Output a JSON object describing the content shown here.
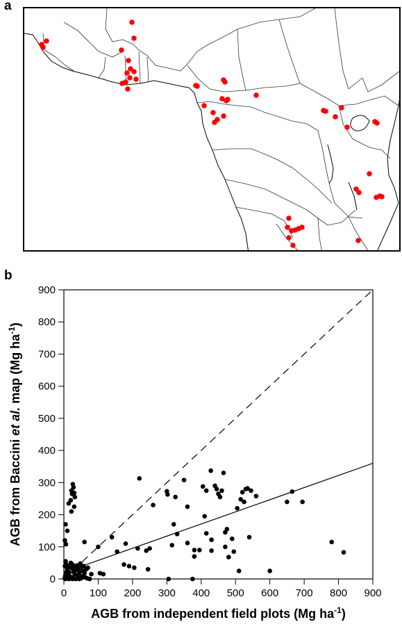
{
  "panels": {
    "a": "a",
    "b": "b"
  },
  "map": {
    "point_color": "#ff0000",
    "sites": [
      [
        188,
        30
      ],
      [
        191,
        53
      ],
      [
        173,
        70
      ],
      [
        183,
        85
      ],
      [
        186,
        97
      ],
      [
        181,
        103
      ],
      [
        191,
        101
      ],
      [
        185,
        110
      ],
      [
        179,
        116
      ],
      [
        194,
        112
      ],
      [
        174,
        118
      ],
      [
        182,
        126
      ],
      [
        65,
        57
      ],
      [
        58,
        62
      ],
      [
        60,
        66
      ],
      [
        280,
        121
      ],
      [
        282,
        122
      ],
      [
        320,
        113
      ],
      [
        322,
        116
      ],
      [
        318,
        140
      ],
      [
        324,
        143
      ],
      [
        326,
        141
      ],
      [
        367,
        135
      ],
      [
        292,
        150
      ],
      [
        305,
        160
      ],
      [
        320,
        165
      ],
      [
        307,
        174
      ],
      [
        311,
        170
      ],
      [
        464,
        157
      ],
      [
        467,
        158
      ],
      [
        490,
        153
      ],
      [
        481,
        166
      ],
      [
        498,
        181
      ],
      [
        538,
        173
      ],
      [
        541,
        175
      ],
      [
        530,
        248
      ],
      [
        511,
        270
      ],
      [
        515,
        275
      ],
      [
        540,
        282
      ],
      [
        545,
        280
      ],
      [
        548,
        281
      ],
      [
        414,
        312
      ],
      [
        412,
        325
      ],
      [
        418,
        330
      ],
      [
        423,
        329
      ],
      [
        428,
        327
      ],
      [
        433,
        325
      ],
      [
        414,
        340
      ],
      [
        420,
        351
      ],
      [
        514,
        344
      ]
    ]
  },
  "chart_data": {
    "type": "scatter",
    "title": "",
    "xlabel_parts": [
      "AGB from independent field plots (Mg ha",
      "-1",
      ")"
    ],
    "ylabel_parts": [
      "AGB from Baccini ",
      "et al.",
      " map (Mg ha",
      "-1",
      ")"
    ],
    "xlim": [
      0,
      900
    ],
    "ylim": [
      0,
      900
    ],
    "xticks": [
      0,
      100,
      200,
      300,
      400,
      500,
      600,
      700,
      800,
      900
    ],
    "yticks": [
      0,
      100,
      200,
      300,
      400,
      500,
      600,
      700,
      800,
      900
    ],
    "grid": false,
    "lines": [
      {
        "style": "dashed",
        "x": [
          0,
          900
        ],
        "y": [
          0,
          900
        ]
      },
      {
        "style": "solid",
        "x": [
          0,
          900
        ],
        "y": [
          20,
          360
        ]
      }
    ],
    "points": [
      [
        2,
        2
      ],
      [
        4,
        10
      ],
      [
        6,
        18
      ],
      [
        8,
        5
      ],
      [
        10,
        30
      ],
      [
        3,
        40
      ],
      [
        5,
        55
      ],
      [
        7,
        45
      ],
      [
        9,
        25
      ],
      [
        12,
        12
      ],
      [
        14,
        40
      ],
      [
        15,
        20
      ],
      [
        18,
        8
      ],
      [
        20,
        50
      ],
      [
        22,
        35
      ],
      [
        25,
        45
      ],
      [
        26,
        5
      ],
      [
        28,
        22
      ],
      [
        30,
        38
      ],
      [
        32,
        15
      ],
      [
        35,
        28
      ],
      [
        38,
        42
      ],
      [
        40,
        10
      ],
      [
        42,
        30
      ],
      [
        45,
        20
      ],
      [
        48,
        48
      ],
      [
        50,
        36
      ],
      [
        52,
        8
      ],
      [
        55,
        25
      ],
      [
        58,
        40
      ],
      [
        60,
        18
      ],
      [
        62,
        5
      ],
      [
        65,
        30
      ],
      [
        68,
        2
      ],
      [
        70,
        35
      ],
      [
        75,
        0
      ],
      [
        80,
        15
      ],
      [
        5,
        0
      ],
      [
        15,
        0
      ],
      [
        25,
        0
      ],
      [
        35,
        0
      ],
      [
        45,
        0
      ],
      [
        50,
        2
      ],
      [
        6,
        108
      ],
      [
        3,
        120
      ],
      [
        5,
        170
      ],
      [
        10,
        150
      ],
      [
        14,
        235
      ],
      [
        20,
        245
      ],
      [
        22,
        275
      ],
      [
        24,
        265
      ],
      [
        26,
        295
      ],
      [
        28,
        285
      ],
      [
        30,
        268
      ],
      [
        32,
        255
      ],
      [
        30,
        225
      ],
      [
        22,
        210
      ],
      [
        60,
        115
      ],
      [
        100,
        100
      ],
      [
        105,
        18
      ],
      [
        115,
        15
      ],
      [
        140,
        130
      ],
      [
        155,
        85
      ],
      [
        175,
        45
      ],
      [
        190,
        40
      ],
      [
        205,
        35
      ],
      [
        220,
        313
      ],
      [
        215,
        95
      ],
      [
        240,
        88
      ],
      [
        250,
        95
      ],
      [
        245,
        30
      ],
      [
        300,
        273
      ],
      [
        302,
        263
      ],
      [
        305,
        0
      ],
      [
        315,
        105
      ],
      [
        320,
        170
      ],
      [
        325,
        255
      ],
      [
        350,
        308
      ],
      [
        360,
        112
      ],
      [
        375,
        0
      ],
      [
        380,
        70
      ],
      [
        395,
        90
      ],
      [
        405,
        288
      ],
      [
        410,
        195
      ],
      [
        415,
        275
      ],
      [
        428,
        337
      ],
      [
        430,
        122
      ],
      [
        440,
        290
      ],
      [
        445,
        280
      ],
      [
        450,
        265
      ],
      [
        455,
        255
      ],
      [
        460,
        275
      ],
      [
        465,
        330
      ],
      [
        470,
        100
      ],
      [
        475,
        155
      ],
      [
        480,
        68
      ],
      [
        490,
        125
      ],
      [
        495,
        85
      ],
      [
        505,
        220
      ],
      [
        510,
        25
      ],
      [
        515,
        248
      ],
      [
        520,
        270
      ],
      [
        525,
        240
      ],
      [
        530,
        280
      ],
      [
        535,
        282
      ],
      [
        540,
        130
      ],
      [
        545,
        275
      ],
      [
        560,
        258
      ],
      [
        600,
        25
      ],
      [
        650,
        240
      ],
      [
        665,
        272
      ],
      [
        695,
        240
      ],
      [
        780,
        115
      ],
      [
        815,
        83
      ],
      [
        380,
        90
      ],
      [
        330,
        140
      ],
      [
        470,
        145
      ],
      [
        180,
        110
      ],
      [
        260,
        230
      ],
      [
        415,
        142
      ],
      [
        430,
        88
      ],
      [
        360,
        225
      ]
    ]
  }
}
